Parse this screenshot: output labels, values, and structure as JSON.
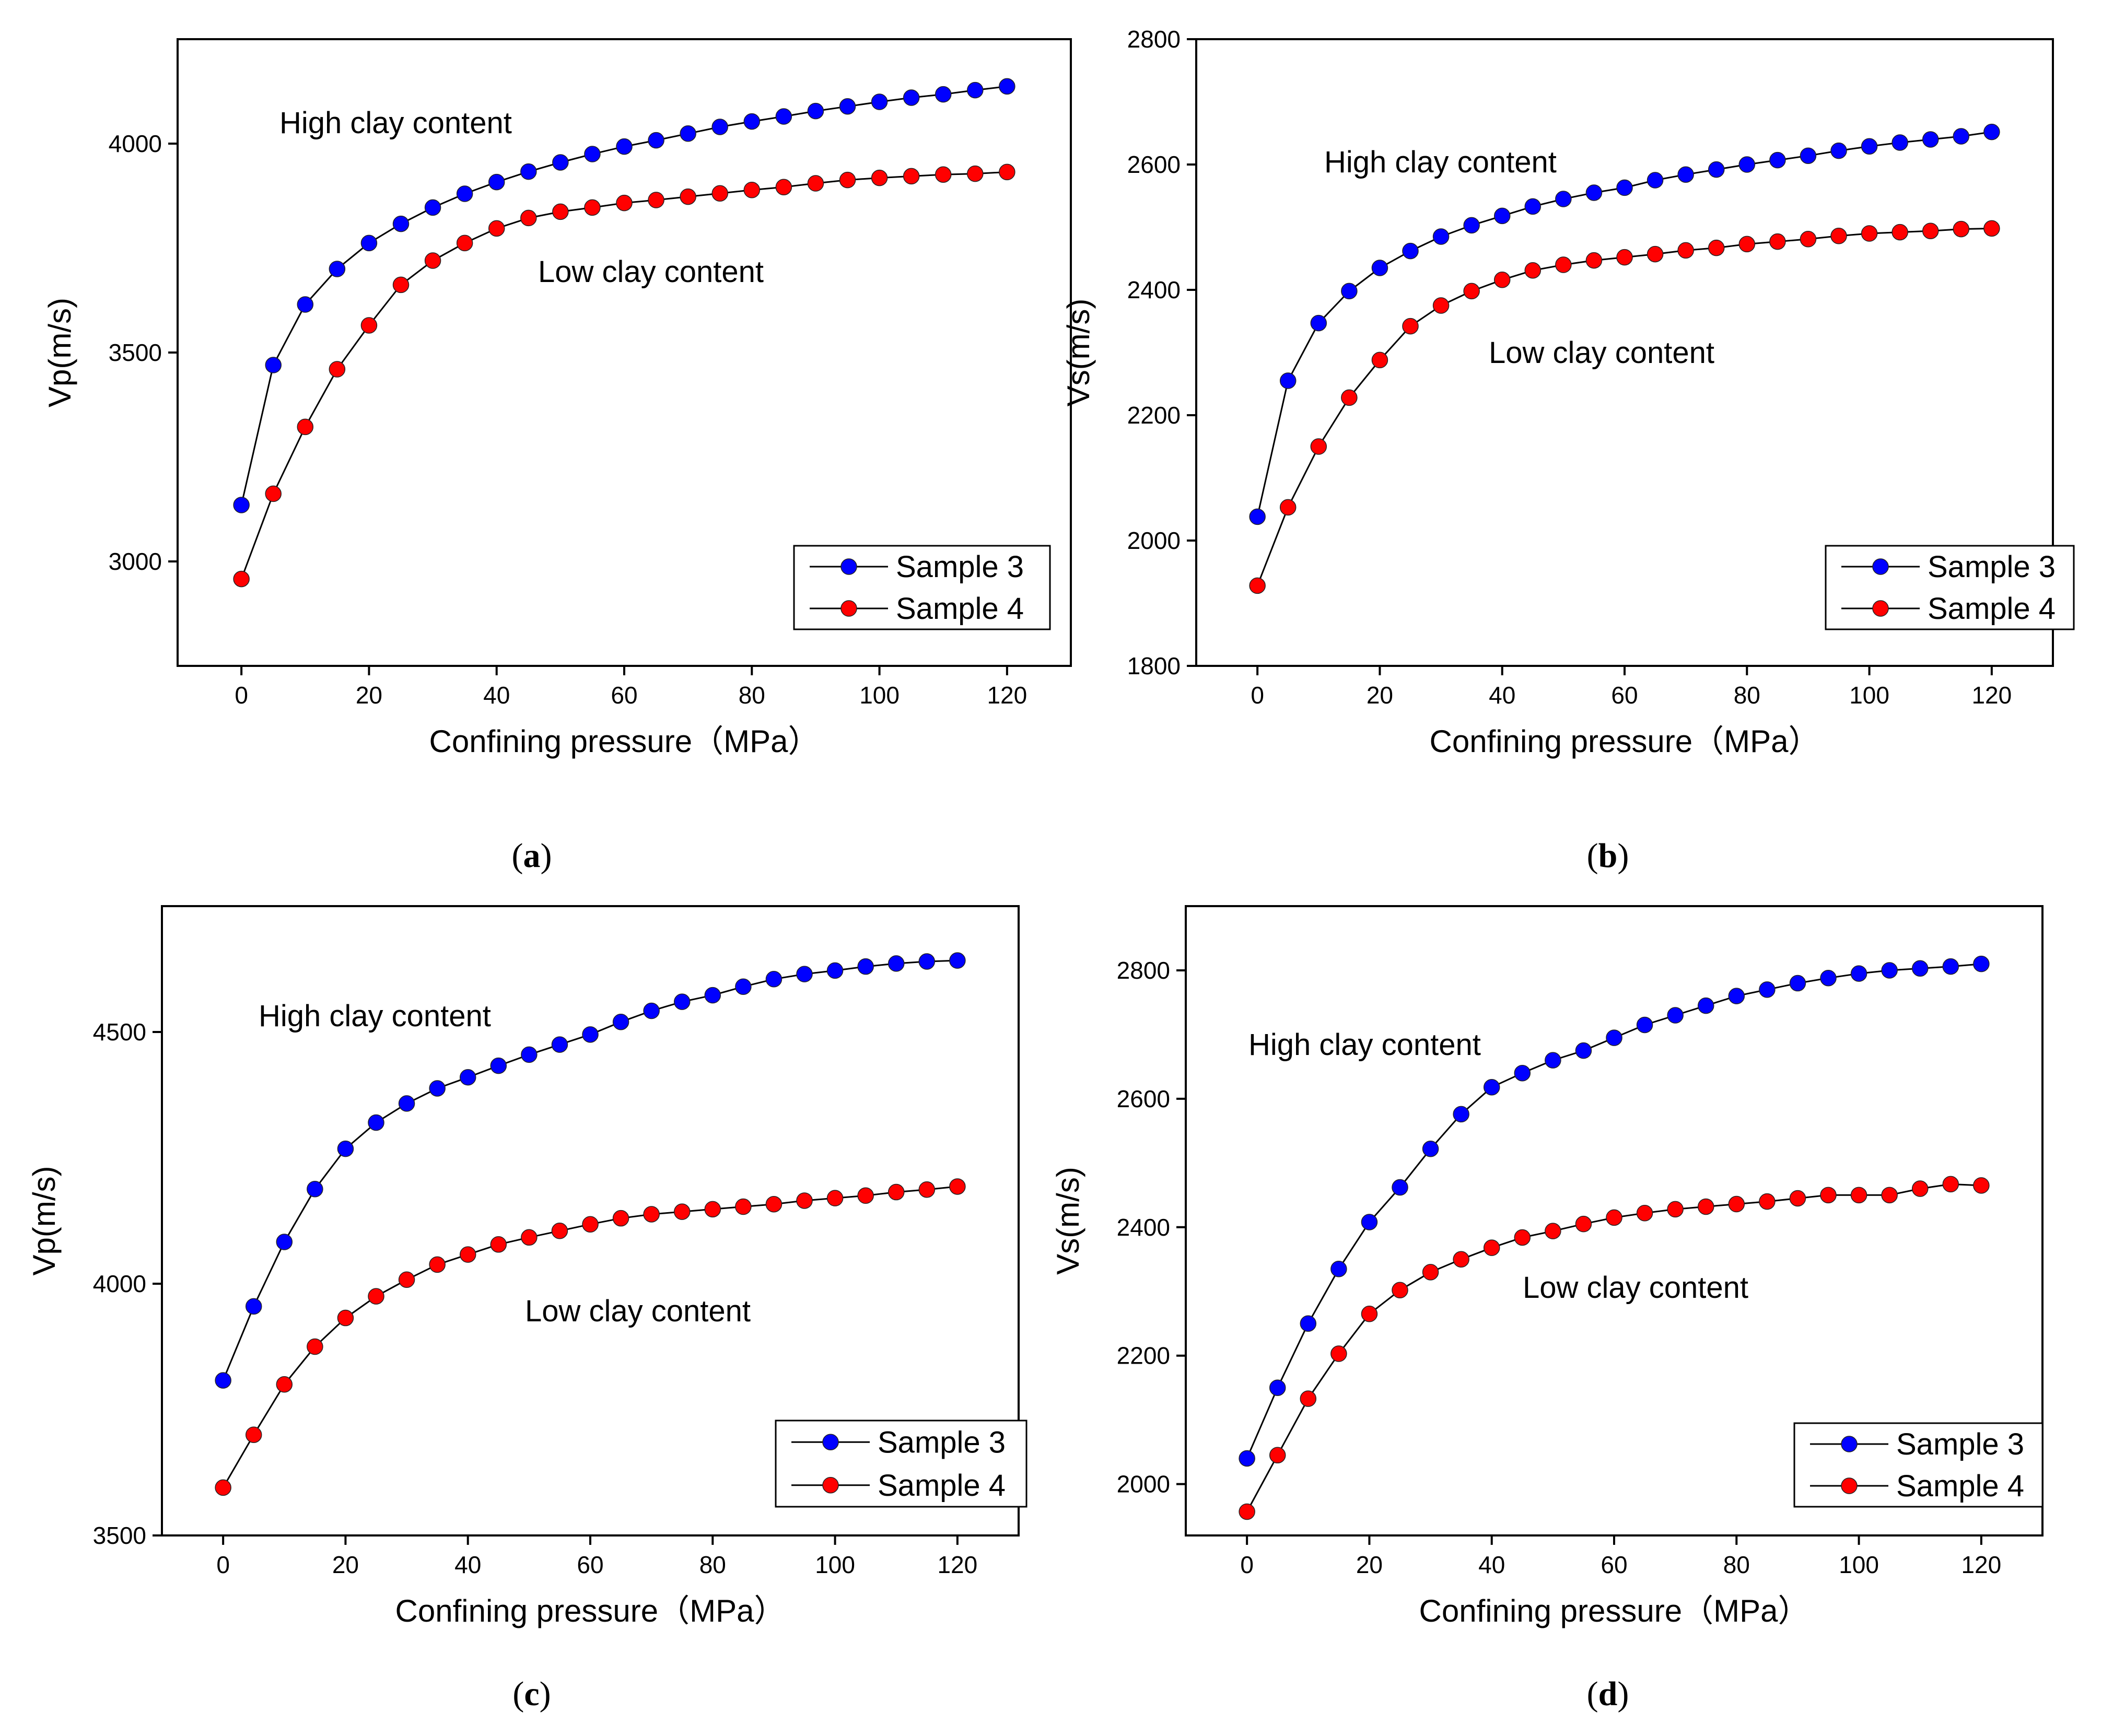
{
  "chart_data": [
    {
      "type": "line",
      "panel_label": "a",
      "xlabel": "Confining pressure（MPa）",
      "ylabel": "Vp(m/s)",
      "xlim": [
        -10,
        130
      ],
      "ylim": [
        2750,
        4250
      ],
      "xticks": [
        0,
        20,
        40,
        60,
        80,
        100,
        120
      ],
      "yticks": [
        3000,
        3500,
        4000
      ],
      "annotations": [
        "High clay content",
        "Low clay content"
      ],
      "legend_position": "bottom-right",
      "x": [
        0,
        5,
        10,
        15,
        20,
        25,
        30,
        35,
        40,
        45,
        50,
        55,
        60,
        65,
        70,
        75,
        80,
        85,
        90,
        95,
        100,
        105,
        110,
        115,
        120
      ],
      "series": [
        {
          "name": "Sample 3",
          "color": "#0000ff",
          "values": [
            3135,
            3470,
            3615,
            3700,
            3762,
            3808,
            3847,
            3880,
            3908,
            3933,
            3955,
            3975,
            3993,
            4008,
            4024,
            4040,
            4053,
            4065,
            4078,
            4089,
            4100,
            4110,
            4118,
            4128,
            4137
          ]
        },
        {
          "name": "Sample 4",
          "color": "#ff0000",
          "values": [
            2958,
            3162,
            3322,
            3460,
            3565,
            3662,
            3720,
            3762,
            3797,
            3822,
            3837,
            3847,
            3858,
            3865,
            3873,
            3881,
            3889,
            3896,
            3905,
            3913,
            3918,
            3922,
            3926,
            3928,
            3932
          ]
        }
      ]
    },
    {
      "type": "line",
      "panel_label": "b",
      "xlabel": "Confining pressure（MPa）",
      "ylabel": "Vs(m/s)",
      "xlim": [
        -10,
        130
      ],
      "ylim": [
        1800,
        2800
      ],
      "xticks": [
        0,
        20,
        40,
        60,
        80,
        100,
        120
      ],
      "yticks": [
        1800,
        2000,
        2200,
        2400,
        2600,
        2800
      ],
      "annotations": [
        "High clay content",
        "Low clay content"
      ],
      "legend_position": "bottom-right",
      "x": [
        0,
        5,
        10,
        15,
        20,
        25,
        30,
        35,
        40,
        45,
        50,
        55,
        60,
        65,
        70,
        75,
        80,
        85,
        90,
        95,
        100,
        105,
        110,
        115,
        120
      ],
      "series": [
        {
          "name": "Sample 3",
          "color": "#0000ff",
          "values": [
            2038,
            2255,
            2347,
            2398,
            2435,
            2462,
            2485,
            2503,
            2518,
            2533,
            2545,
            2555,
            2563,
            2575,
            2584,
            2592,
            2600,
            2607,
            2614,
            2622,
            2629,
            2635,
            2640,
            2645,
            2652
          ]
        },
        {
          "name": "Sample 4",
          "color": "#ff0000",
          "values": [
            1928,
            2053,
            2150,
            2228,
            2288,
            2342,
            2375,
            2398,
            2416,
            2431,
            2440,
            2447,
            2452,
            2457,
            2463,
            2467,
            2473,
            2477,
            2481,
            2486,
            2490,
            2492,
            2494,
            2497,
            2498
          ]
        }
      ]
    },
    {
      "type": "line",
      "panel_label": "c",
      "xlabel": "Confining pressure（MPa）",
      "ylabel": "Vp(m/s)",
      "xlim": [
        -10,
        130
      ],
      "ylim": [
        3500,
        4750
      ],
      "xticks": [
        0,
        20,
        40,
        60,
        80,
        100,
        120
      ],
      "yticks": [
        3500,
        4000,
        4500
      ],
      "annotations": [
        "High clay content",
        "Low clay content"
      ],
      "legend_position": "bottom-right",
      "x": [
        0,
        5,
        10,
        15,
        20,
        25,
        30,
        35,
        40,
        45,
        50,
        55,
        60,
        65,
        70,
        75,
        80,
        85,
        90,
        95,
        100,
        105,
        110,
        115,
        120
      ],
      "series": [
        {
          "name": "Sample 3",
          "color": "#0000ff",
          "values": [
            3808,
            3955,
            4083,
            4188,
            4268,
            4320,
            4358,
            4388,
            4410,
            4433,
            4455,
            4475,
            4495,
            4520,
            4542,
            4560,
            4573,
            4590,
            4605,
            4615,
            4622,
            4630,
            4636,
            4640,
            4642
          ]
        },
        {
          "name": "Sample 4",
          "color": "#ff0000",
          "values": [
            3595,
            3700,
            3800,
            3875,
            3932,
            3975,
            4008,
            4038,
            4058,
            4078,
            4092,
            4105,
            4118,
            4130,
            4138,
            4143,
            4148,
            4153,
            4158,
            4165,
            4170,
            4175,
            4182,
            4187,
            4193
          ]
        }
      ]
    },
    {
      "type": "line",
      "panel_label": "d",
      "xlabel": "Confining pressure（MPa）",
      "ylabel": "Vs(m/s)",
      "xlim": [
        -10,
        130
      ],
      "ylim": [
        1920,
        2900
      ],
      "xticks": [
        0,
        20,
        40,
        60,
        80,
        100,
        120
      ],
      "yticks": [
        2000,
        2200,
        2400,
        2600,
        2800
      ],
      "annotations": [
        "High clay content",
        "Low clay content"
      ],
      "legend_position": "bottom-right",
      "x": [
        0,
        5,
        10,
        15,
        20,
        25,
        30,
        35,
        40,
        45,
        50,
        55,
        60,
        65,
        70,
        75,
        80,
        85,
        90,
        95,
        100,
        105,
        110,
        115,
        120
      ],
      "series": [
        {
          "name": "Sample 3",
          "color": "#0000ff",
          "values": [
            2040,
            2150,
            2250,
            2335,
            2408,
            2462,
            2522,
            2576,
            2618,
            2640,
            2660,
            2675,
            2695,
            2715,
            2730,
            2745,
            2760,
            2770,
            2780,
            2788,
            2795,
            2800,
            2803,
            2806,
            2810
          ]
        },
        {
          "name": "Sample 4",
          "color": "#ff0000",
          "values": [
            1957,
            2045,
            2133,
            2203,
            2265,
            2302,
            2330,
            2350,
            2368,
            2384,
            2394,
            2405,
            2415,
            2422,
            2428,
            2432,
            2436,
            2440,
            2445,
            2450,
            2450,
            2450,
            2460,
            2467,
            2465
          ]
        }
      ]
    }
  ]
}
